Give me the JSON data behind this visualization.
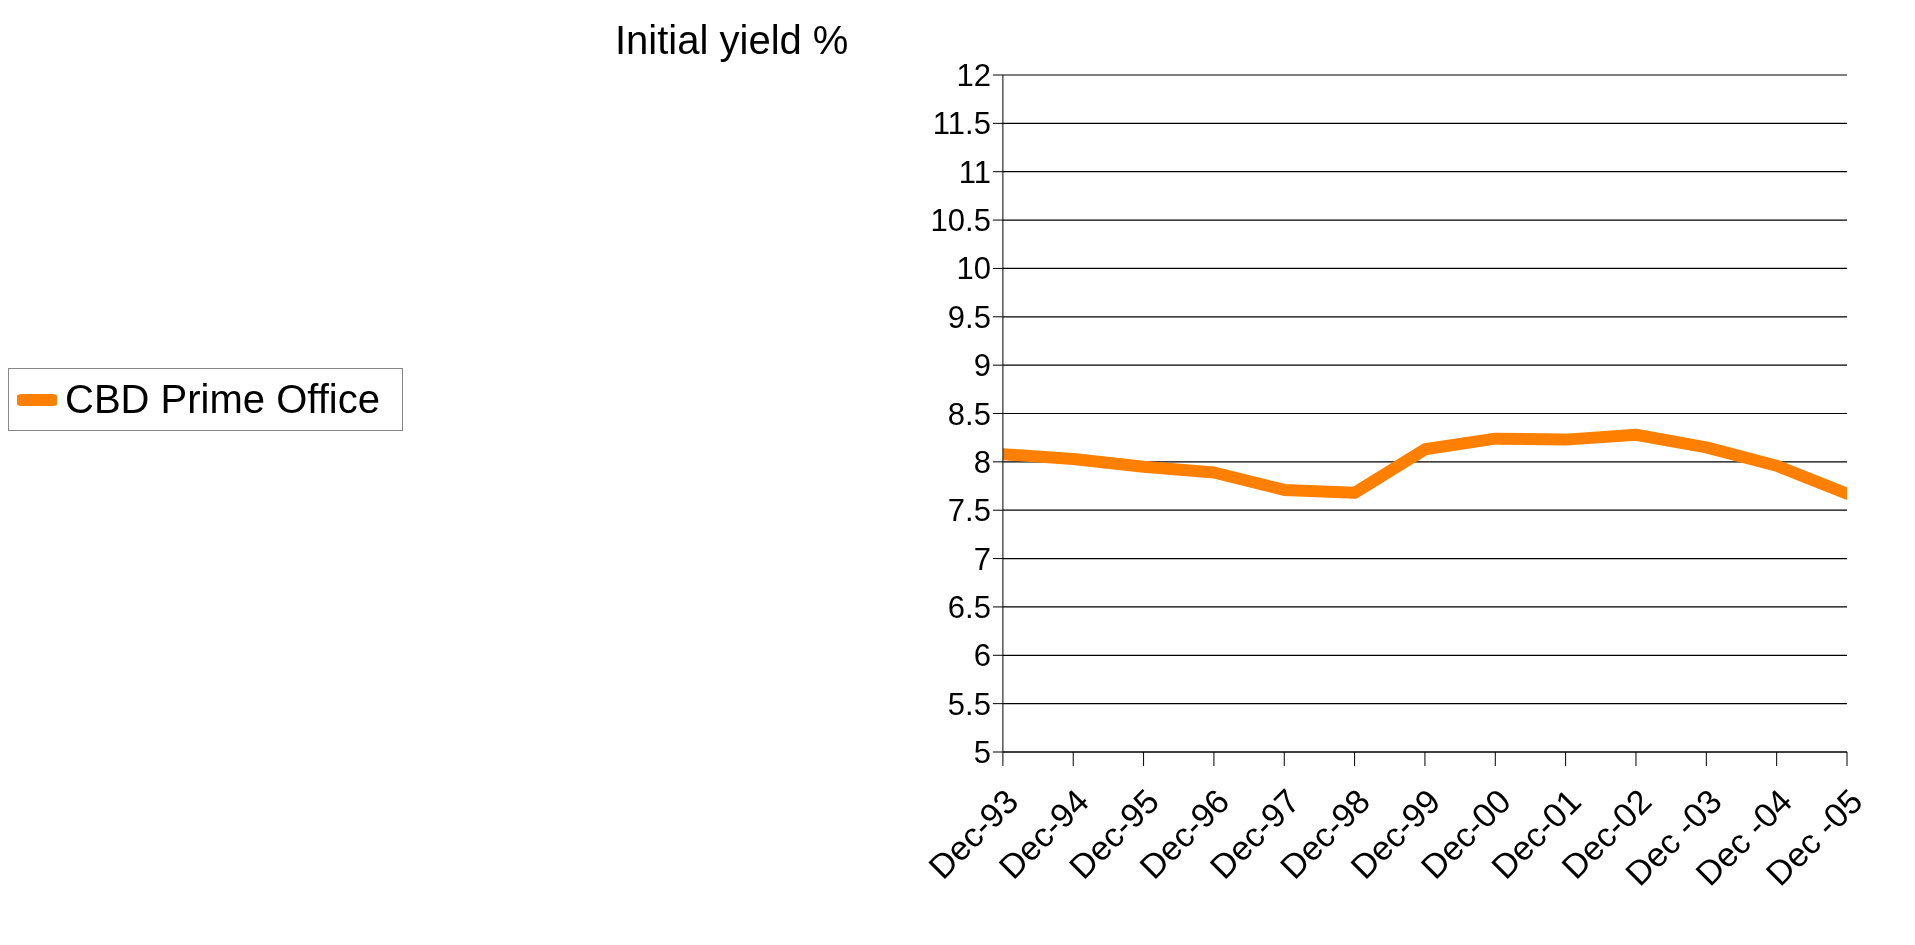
{
  "chart_data": {
    "type": "line",
    "title": "Initial yield %",
    "categories": [
      "Dec-93",
      "Dec-94",
      "Dec-95",
      "Dec-96",
      "Dec-97",
      "Dec-98",
      "Dec-99",
      "Dec-00",
      "Dec-01",
      "Dec-02",
      "Dec -03",
      "Dec -04",
      "Dec -05"
    ],
    "series": [
      {
        "name": "CBD Prime Office",
        "color": "#ff8000",
        "values": [
          8.08,
          8.03,
          7.95,
          7.89,
          7.71,
          7.68,
          8.13,
          8.24,
          8.23,
          8.28,
          8.15,
          7.96,
          7.67
        ]
      }
    ],
    "ylim": [
      5,
      12
    ],
    "yticks": [
      5,
      5.5,
      6,
      6.5,
      7,
      7.5,
      8,
      8.5,
      9,
      9.5,
      10,
      10.5,
      11,
      11.5,
      12
    ],
    "grid": "y",
    "legend": "left",
    "marker": "none",
    "line_style": "solid"
  }
}
